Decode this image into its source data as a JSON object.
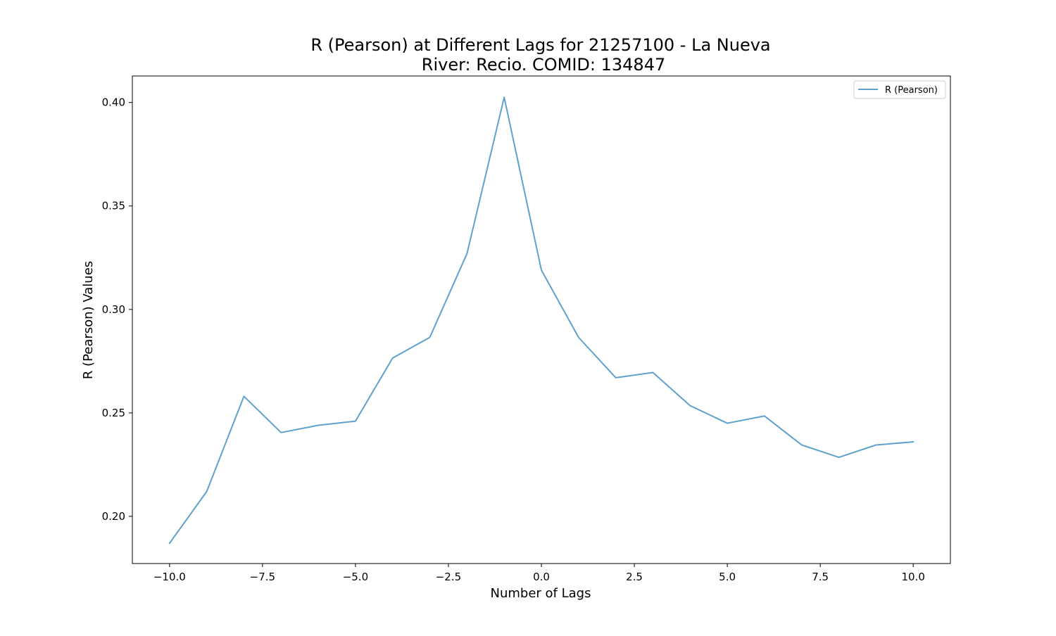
{
  "chart_data": {
    "type": "line",
    "title": "R (Pearson) at Different Lags for 21257100 - La Nueva",
    "subtitle": "River: Recio. COMID: 134847",
    "xlabel": "Number of Lags",
    "ylabel": "R (Pearson) Values",
    "xlim": [
      -11.0,
      11.0
    ],
    "ylim": [
      0.1772,
      0.4128
    ],
    "x_ticks": [
      -10.0,
      -7.5,
      -5.0,
      -2.5,
      0.0,
      2.5,
      5.0,
      7.5,
      10.0
    ],
    "x_tick_labels": [
      "−10.0",
      "−7.5",
      "−5.0",
      "−2.5",
      "0.0",
      "2.5",
      "5.0",
      "7.5",
      "10.0"
    ],
    "y_ticks": [
      0.2,
      0.25,
      0.3,
      0.35,
      0.4
    ],
    "y_tick_labels": [
      "0.20",
      "0.25",
      "0.30",
      "0.35",
      "0.40"
    ],
    "grid": false,
    "legend_position": "top-right",
    "series": [
      {
        "name": "R (Pearson)",
        "color": "#5ea1cd",
        "x": [
          -10,
          -9,
          -8,
          -7,
          -6,
          -5,
          -4,
          -3,
          -2,
          -1,
          0,
          1,
          2,
          3,
          4,
          5,
          6,
          7,
          8,
          9,
          10
        ],
        "y": [
          0.187,
          0.212,
          0.258,
          0.2405,
          0.244,
          0.246,
          0.2765,
          0.2865,
          0.327,
          0.4025,
          0.319,
          0.2865,
          0.267,
          0.2695,
          0.2535,
          0.245,
          0.2485,
          0.2345,
          0.2285,
          0.2345,
          0.236
        ]
      }
    ]
  }
}
